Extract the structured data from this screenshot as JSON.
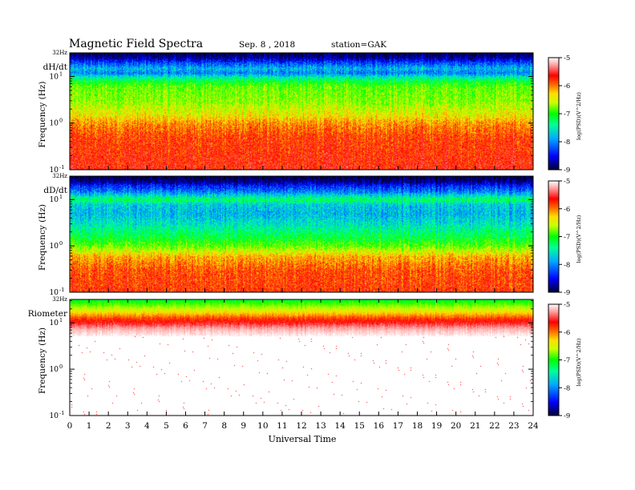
{
  "header": {
    "title": "Magnetic  Field  Spectra",
    "date": "Sep. 8  , 2018",
    "station": "station=GAK"
  },
  "chart_data": [
    {
      "type": "heatmap",
      "label": "dH/dt",
      "ylabel": "Frequency  (Hz)",
      "ylim": [
        0.1,
        32
      ],
      "yscale": "log",
      "top_label": "32Hz",
      "y_ticks": [
        {
          "value": 10,
          "base": "10",
          "exp": "1"
        },
        {
          "value": 1,
          "base": "10",
          "exp": "0"
        },
        {
          "value": 0.1,
          "base": "10",
          "exp": "-1"
        }
      ],
      "colorbar": {
        "label": "log(PSD)(V^2/Hz)",
        "range": [
          -9,
          -5
        ],
        "ticks": [
          "-5",
          "-6",
          "-7",
          "-8",
          "-9"
        ]
      },
      "profile": [
        {
          "f": 32,
          "v": -9.0
        },
        {
          "f": 25,
          "v": -8.7
        },
        {
          "f": 20,
          "v": -8.3
        },
        {
          "f": 15,
          "v": -7.9
        },
        {
          "f": 12,
          "v": -8.1
        },
        {
          "f": 10,
          "v": -7.7
        },
        {
          "f": 8,
          "v": -7.3
        },
        {
          "f": 6,
          "v": -7.0
        },
        {
          "f": 3,
          "v": -6.9
        },
        {
          "f": 1.5,
          "v": -6.6
        },
        {
          "f": 1,
          "v": -6.3
        },
        {
          "f": 0.5,
          "v": -6.05
        },
        {
          "f": 0.1,
          "v": -5.9
        }
      ]
    },
    {
      "type": "heatmap",
      "label": "dD/dt",
      "ylabel": "Frequency  (Hz)",
      "ylim": [
        0.1,
        32
      ],
      "yscale": "log",
      "top_label": "32Hz",
      "y_ticks": [
        {
          "value": 10,
          "base": "10",
          "exp": "1"
        },
        {
          "value": 1,
          "base": "10",
          "exp": "0"
        },
        {
          "value": 0.1,
          "base": "10",
          "exp": "-1"
        }
      ],
      "colorbar": {
        "label": "log(PSD)(V^2/Hz)",
        "range": [
          -9,
          -5
        ],
        "ticks": [
          "-5",
          "-6",
          "-7",
          "-8",
          "-9"
        ]
      },
      "profile": [
        {
          "f": 32,
          "v": -9.0
        },
        {
          "f": 25,
          "v": -8.8
        },
        {
          "f": 20,
          "v": -8.4
        },
        {
          "f": 15,
          "v": -8.1
        },
        {
          "f": 10,
          "v": -7.4
        },
        {
          "f": 8,
          "v": -7.8
        },
        {
          "f": 5,
          "v": -7.9
        },
        {
          "f": 3,
          "v": -7.7
        },
        {
          "f": 1.5,
          "v": -7.3
        },
        {
          "f": 1,
          "v": -7.0
        },
        {
          "f": 0.6,
          "v": -6.4
        },
        {
          "f": 0.3,
          "v": -6.1
        },
        {
          "f": 0.1,
          "v": -6.0
        }
      ]
    },
    {
      "type": "heatmap",
      "label": "Riometer",
      "ylabel": "Frequency  (Hz)",
      "ylim": [
        0.1,
        32
      ],
      "yscale": "log",
      "top_label": "32Hz",
      "y_ticks": [
        {
          "value": 10,
          "base": "10",
          "exp": "1"
        },
        {
          "value": 1,
          "base": "10",
          "exp": "0"
        },
        {
          "value": 0.1,
          "base": "10",
          "exp": "-1"
        }
      ],
      "colorbar": {
        "label": "log(PSD)(V^2/Hz)",
        "range": [
          -9,
          -5
        ],
        "ticks": [
          "-5",
          "-6",
          "-7",
          "-8",
          "-9"
        ]
      },
      "profile": [
        {
          "f": 32,
          "v": -7.3
        },
        {
          "f": 25,
          "v": -7.0
        },
        {
          "f": 18,
          "v": -6.6
        },
        {
          "f": 13,
          "v": -6.1
        },
        {
          "f": 10,
          "v": -5.8
        },
        {
          "f": 7,
          "v": -5.3
        },
        {
          "f": 5,
          "v": -5.0
        },
        {
          "f": 0.1,
          "v": -5.0
        }
      ]
    }
  ],
  "x_axis": {
    "label": "Universal  Time",
    "ticks": [
      "0",
      "1",
      "2",
      "3",
      "4",
      "5",
      "6",
      "7",
      "8",
      "9",
      "10",
      "11",
      "12",
      "13",
      "14",
      "15",
      "16",
      "17",
      "18",
      "19",
      "20",
      "21",
      "22",
      "23",
      "24"
    ]
  },
  "colors": {
    "scale": [
      "#000044",
      "#0000ff",
      "#00aaff",
      "#00ff88",
      "#00ff00",
      "#ccff00",
      "#ffdd00",
      "#ff6600",
      "#ff0000",
      "#ffffff"
    ]
  }
}
